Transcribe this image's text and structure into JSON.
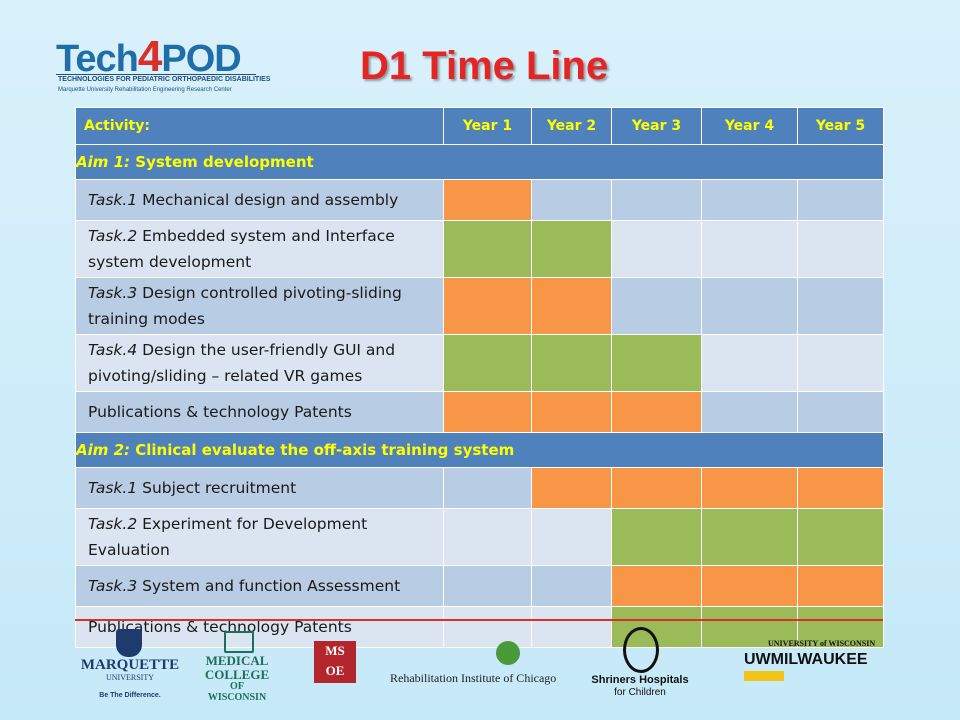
{
  "branding": {
    "tech4pod_tech": "Tech",
    "tech4pod_4": "4",
    "tech4pod_pod": "POD",
    "tech4pod_line1": "TECHNOLOGIES FOR PEDIATRIC ORTHOPAEDIC DISABILITIES",
    "tech4pod_line2": "Marquette University Rehabilitation Engineering Research Center"
  },
  "title": "D1 Time Line",
  "colors": {
    "header_bg": "#4f81bd",
    "header_text": "#ffff00",
    "title": "#e52423",
    "orange": "#f79646",
    "green": "#9bbb59",
    "row_dark": "#b8cce4",
    "row_light": "#dbe5f1"
  },
  "table": {
    "header": {
      "activity": "Activity:",
      "years": [
        "Year 1",
        "Year 2",
        "Year 3",
        "Year 4",
        "Year 5"
      ]
    },
    "aims": [
      {
        "label_italic": "Aim 1:",
        "label_rest": " System development",
        "tasks": [
          {
            "italic": "Task.1",
            "rest": " Mechanical design and assembly",
            "cells": [
              "orange",
              "",
              "",
              "",
              ""
            ]
          },
          {
            "italic": "Task.2",
            "rest": " Embedded system and Interface system development",
            "cells": [
              "green",
              "green",
              "",
              "",
              ""
            ]
          },
          {
            "italic": "Task.3",
            "rest": " Design controlled pivoting-sliding training modes",
            "cells": [
              "orange",
              "orange",
              "",
              "",
              ""
            ]
          },
          {
            "italic": "Task.4",
            "rest": " Design the user-friendly  GUI and pivoting/sliding – related VR games",
            "cells": [
              "green",
              "green",
              "green",
              "",
              ""
            ]
          },
          {
            "italic": "",
            "rest": "Publications & technology Patents",
            "cells": [
              "orange",
              "orange",
              "orange",
              "",
              ""
            ]
          }
        ]
      },
      {
        "label_italic": "Aim 2:",
        "label_rest": " Clinical evaluate the off-axis training system",
        "tasks": [
          {
            "italic": "Task.1",
            "rest": " Subject recruitment",
            "cells": [
              "",
              "orange",
              "orange",
              "orange",
              "orange"
            ]
          },
          {
            "italic": "Task.2",
            "rest": " Experiment for Development Evaluation",
            "cells": [
              "",
              "",
              "green",
              "green",
              "green"
            ]
          },
          {
            "italic": "Task.3",
            "rest": " System and function Assessment",
            "cells": [
              "",
              "",
              "orange",
              "orange",
              "orange"
            ]
          },
          {
            "italic": "",
            "rest": "Publications & technology Patents",
            "cells": [
              "",
              "",
              "green",
              "green",
              "green"
            ]
          }
        ]
      }
    ]
  },
  "footer_logos": {
    "marquette_name": "MARQUETTE",
    "marquette_sub": "UNIVERSITY",
    "marquette_tagline": "Be The Difference.",
    "mcw_line1": "MEDICAL",
    "mcw_line2": "COLLEGE",
    "mcw_line3": "OF WISCONSIN",
    "msoe_line1": "MS",
    "msoe_line2": "OE",
    "ric": "Rehabilitation Institute of Chicago",
    "shriners_line1": "Shriners Hospitals",
    "shriners_line2": "for Children",
    "uwm_line1": "UNIVERSITY of WISCONSIN",
    "uwm_line2": "UWMILWAUKEE"
  }
}
